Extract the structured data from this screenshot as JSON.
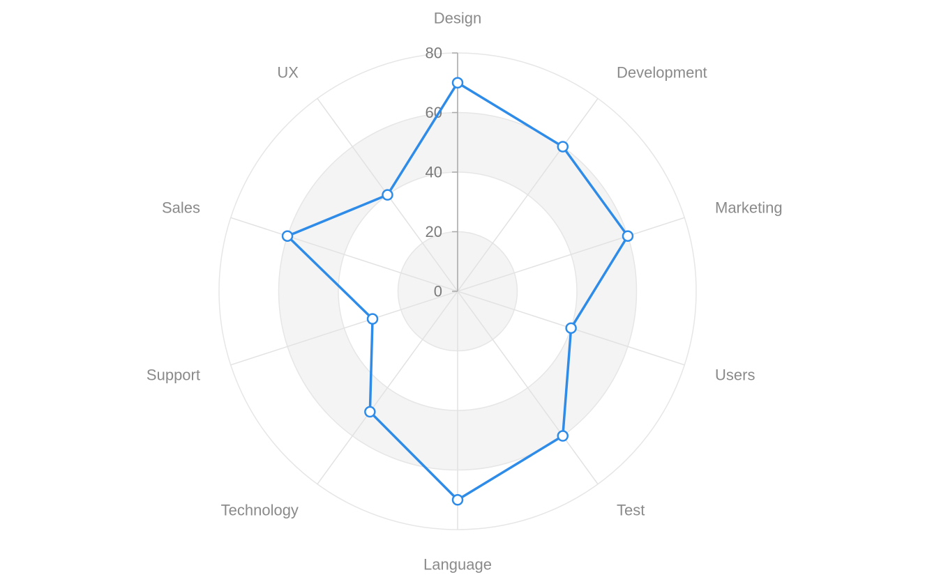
{
  "chart_data": {
    "type": "radar",
    "title": "",
    "categories": [
      "Design",
      "Development",
      "Marketing",
      "Users",
      "Test",
      "Language",
      "Technology",
      "Support",
      "Sales",
      "UX"
    ],
    "series": [
      {
        "values": [
          70,
          60,
          60,
          40,
          60,
          70,
          50,
          30,
          60,
          40
        ],
        "color": "#2e8ce8"
      }
    ],
    "radial_axis": {
      "min": 0,
      "max": 80,
      "ticks": [
        0,
        20,
        40,
        60,
        80
      ],
      "tick_labels": [
        "0",
        "20",
        "40",
        "60",
        "80"
      ]
    },
    "grid": true,
    "alternating_bands": true,
    "colors": {
      "grid": "#e6e6e6",
      "band": "#f4f4f4",
      "axis": "#a9a9a9",
      "label": "#8a8a8a",
      "series": "#2e8ce8"
    }
  }
}
